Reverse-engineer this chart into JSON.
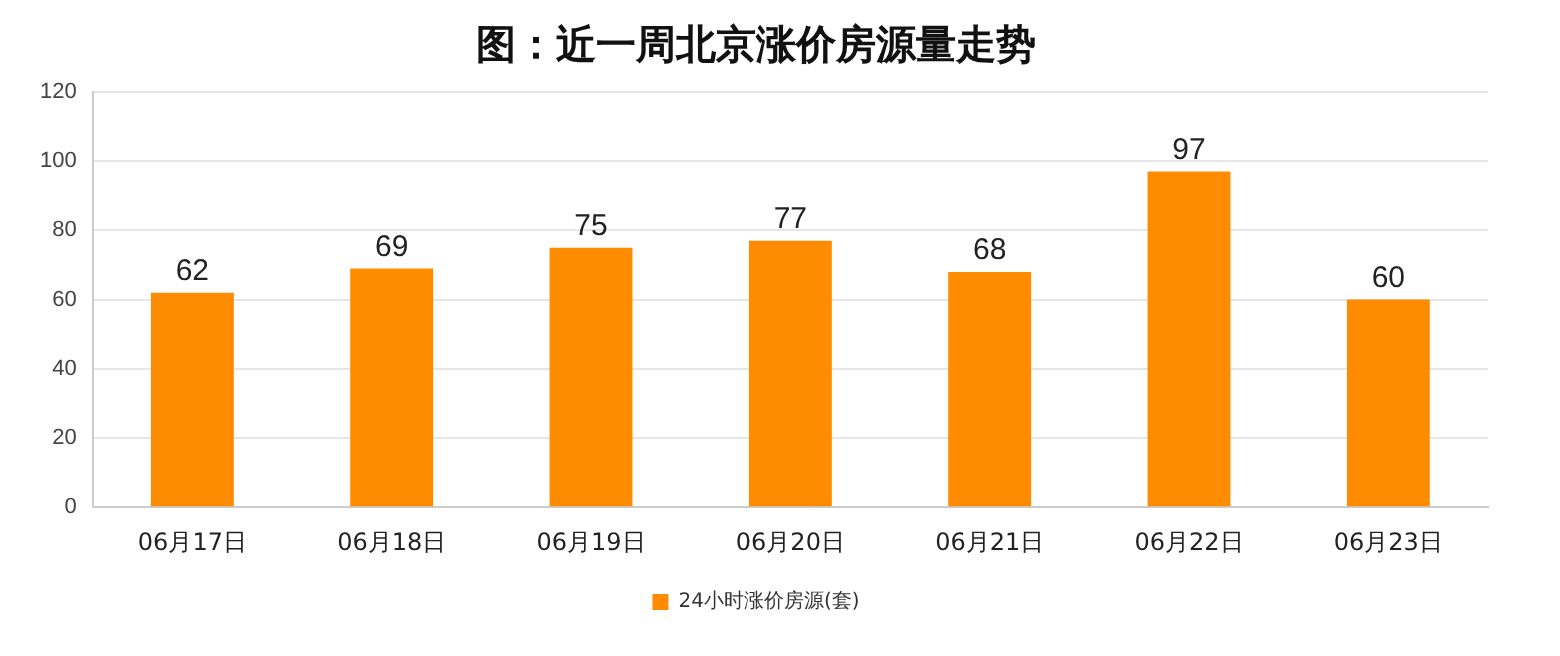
{
  "chart_data": {
    "type": "bar",
    "title": "图：近一周北京涨价房源量走势",
    "categories": [
      "06月17日",
      "06月18日",
      "06月19日",
      "06月20日",
      "06月21日",
      "06月22日",
      "06月23日"
    ],
    "series": [
      {
        "name": "24小时涨价房源(套)",
        "color": "#ff8c00",
        "values": [
          62,
          69,
          75,
          77,
          68,
          97,
          60
        ]
      }
    ],
    "ylim": [
      0,
      120
    ],
    "yticks": [
      0,
      20,
      40,
      60,
      80,
      100,
      120
    ],
    "grid": "y",
    "legend": "bottom",
    "data_labels": true
  }
}
